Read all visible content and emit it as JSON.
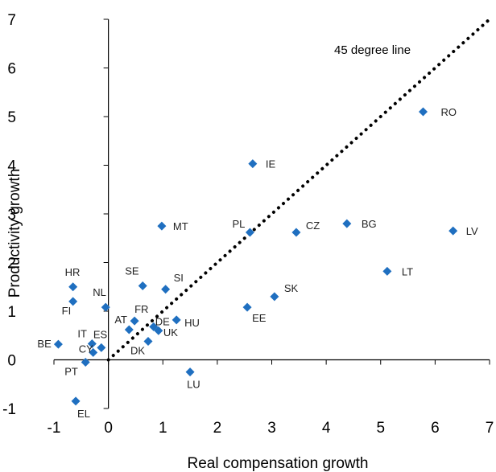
{
  "chart_data": {
    "type": "scatter",
    "title": "",
    "xlabel": "Real compensation growth",
    "ylabel": "Productivity growth",
    "xlim": [
      -1,
      7
    ],
    "ylim": [
      -1,
      7
    ],
    "xticks": [
      "-1",
      "0",
      "1",
      "2",
      "3",
      "4",
      "5",
      "6",
      "7"
    ],
    "yticks": [
      "-1",
      "0",
      "1",
      "2",
      "3",
      "4",
      "5",
      "6",
      "7"
    ],
    "grid": false,
    "marker_color": "#1f6fc0",
    "reference_line": {
      "label": "45 degree line",
      "from": [
        0,
        0
      ],
      "to": [
        7,
        7
      ],
      "style": "dotted"
    },
    "points": [
      {
        "label": "RO",
        "x": 5.78,
        "y": 5.1
      },
      {
        "label": "IE",
        "x": 2.65,
        "y": 4.03
      },
      {
        "label": "MT",
        "x": 0.98,
        "y": 2.75
      },
      {
        "label": "PL",
        "x": 2.6,
        "y": 2.62
      },
      {
        "label": "CZ",
        "x": 3.45,
        "y": 2.62
      },
      {
        "label": "BG",
        "x": 4.38,
        "y": 2.8
      },
      {
        "label": "LV",
        "x": 6.33,
        "y": 2.65
      },
      {
        "label": "LT",
        "x": 5.12,
        "y": 1.82
      },
      {
        "label": "HR",
        "x": -0.65,
        "y": 1.5
      },
      {
        "label": "SE",
        "x": 0.63,
        "y": 1.52
      },
      {
        "label": "SI",
        "x": 1.05,
        "y": 1.45
      },
      {
        "label": "NL",
        "x": -0.05,
        "y": 1.08
      },
      {
        "label": "FI",
        "x": -0.65,
        "y": 1.2
      },
      {
        "label": "SK",
        "x": 3.05,
        "y": 1.3
      },
      {
        "label": "EE",
        "x": 2.55,
        "y": 1.08
      },
      {
        "label": "AT",
        "x": 0.38,
        "y": 0.62
      },
      {
        "label": "FR",
        "x": 0.48,
        "y": 0.8
      },
      {
        "label": "DE",
        "x": 0.83,
        "y": 0.68
      },
      {
        "label": "HU",
        "x": 1.25,
        "y": 0.82
      },
      {
        "label": "UK",
        "x": 0.92,
        "y": 0.6
      },
      {
        "label": "DK",
        "x": 0.73,
        "y": 0.38
      },
      {
        "label": "BE",
        "x": -0.92,
        "y": 0.32
      },
      {
        "label": "IT",
        "x": -0.3,
        "y": 0.33
      },
      {
        "label": "ES",
        "x": -0.13,
        "y": 0.25
      },
      {
        "label": "CY",
        "x": -0.28,
        "y": 0.15
      },
      {
        "label": "PT",
        "x": -0.42,
        "y": -0.05
      },
      {
        "label": "LU",
        "x": 1.5,
        "y": -0.25
      },
      {
        "label": "EL",
        "x": -0.6,
        "y": -0.85
      }
    ]
  }
}
